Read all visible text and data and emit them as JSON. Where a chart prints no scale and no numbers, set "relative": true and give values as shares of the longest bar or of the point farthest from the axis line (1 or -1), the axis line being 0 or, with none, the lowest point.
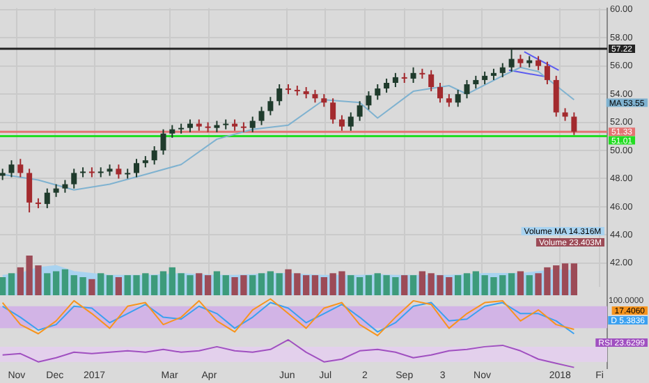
{
  "chart_data": [
    {
      "type": "candlestick",
      "tick_labels": "y",
      "grid": true,
      "x": [
        "2016-10-21",
        "2016-10-28",
        "2016-11-04",
        "2016-11-11",
        "2016-11-18",
        "2016-11-25",
        "2016-12-02",
        "2016-12-09",
        "2016-12-16",
        "2016-12-23",
        "2016-12-30",
        "2017-01-06",
        "2017-01-13",
        "2017-01-20",
        "2017-01-27",
        "2017-02-03",
        "2017-02-10",
        "2017-02-17",
        "2017-02-24",
        "2017-03-03",
        "2017-03-10",
        "2017-03-17",
        "2017-03-24",
        "2017-03-31",
        "2017-04-07",
        "2017-04-14",
        "2017-04-21",
        "2017-04-28",
        "2017-05-05",
        "2017-05-12",
        "2017-05-19",
        "2017-05-26",
        "2017-06-02",
        "2017-06-09",
        "2017-06-16",
        "2017-06-23",
        "2017-06-30",
        "2017-07-07",
        "2017-07-14",
        "2017-07-21",
        "2017-07-28",
        "2017-08-04",
        "2017-08-11",
        "2017-08-18",
        "2017-08-25",
        "2017-09-01",
        "2017-09-08",
        "2017-09-15",
        "2017-09-22",
        "2017-09-29",
        "2017-10-06",
        "2017-10-13",
        "2017-10-20",
        "2017-10-27",
        "2017-11-03",
        "2017-11-10",
        "2017-11-17",
        "2017-11-24",
        "2017-12-01",
        "2017-12-08",
        "2017-12-15",
        "2017-12-22",
        "2017-12-29",
        "2018-01-05",
        "2018-01-12"
      ],
      "ohlc": [
        [
          48.2,
          48.7,
          47.9,
          48.4
        ],
        [
          48.4,
          49.3,
          48.1,
          49.0
        ],
        [
          49.0,
          49.4,
          48.1,
          48.4
        ],
        [
          48.4,
          48.7,
          45.6,
          46.3
        ],
        [
          46.3,
          46.6,
          45.9,
          46.2
        ],
        [
          46.2,
          47.3,
          45.9,
          47.0
        ],
        [
          47.0,
          47.6,
          46.7,
          47.3
        ],
        [
          47.3,
          47.9,
          47.0,
          47.6
        ],
        [
          47.6,
          48.7,
          47.3,
          48.4
        ],
        [
          48.4,
          48.8,
          48.1,
          48.5
        ],
        [
          48.5,
          48.8,
          48.1,
          48.4
        ],
        [
          48.4,
          48.8,
          48.1,
          48.5
        ],
        [
          48.5,
          49.0,
          48.2,
          48.7
        ],
        [
          48.7,
          49.0,
          48.0,
          48.3
        ],
        [
          48.3,
          48.7,
          48.0,
          48.4
        ],
        [
          48.4,
          49.4,
          48.1,
          49.1
        ],
        [
          49.1,
          49.6,
          48.8,
          49.3
        ],
        [
          49.3,
          50.3,
          49.0,
          50.0
        ],
        [
          50.0,
          51.5,
          49.7,
          51.2
        ],
        [
          51.2,
          51.8,
          50.9,
          51.5
        ],
        [
          51.5,
          51.9,
          51.2,
          51.6
        ],
        [
          51.6,
          52.2,
          51.3,
          51.9
        ],
        [
          51.9,
          52.2,
          51.4,
          51.7
        ],
        [
          51.7,
          52.0,
          51.3,
          51.6
        ],
        [
          51.6,
          52.1,
          51.3,
          51.8
        ],
        [
          51.8,
          52.2,
          51.5,
          51.9
        ],
        [
          51.9,
          52.2,
          51.4,
          51.7
        ],
        [
          51.7,
          52.0,
          51.3,
          51.6
        ],
        [
          51.6,
          52.4,
          51.3,
          52.1
        ],
        [
          52.1,
          53.1,
          51.8,
          52.8
        ],
        [
          52.8,
          53.8,
          52.5,
          53.5
        ],
        [
          53.5,
          54.7,
          53.2,
          54.4
        ],
        [
          54.4,
          54.7,
          54.0,
          54.3
        ],
        [
          54.3,
          54.6,
          53.9,
          54.2
        ],
        [
          54.2,
          54.5,
          53.7,
          54.0
        ],
        [
          54.0,
          54.3,
          53.4,
          53.7
        ],
        [
          53.7,
          54.0,
          53.1,
          53.4
        ],
        [
          53.4,
          53.7,
          51.9,
          52.2
        ],
        [
          52.2,
          52.5,
          51.4,
          51.7
        ],
        [
          51.7,
          52.7,
          51.4,
          52.4
        ],
        [
          52.4,
          53.5,
          52.1,
          53.2
        ],
        [
          53.2,
          54.2,
          52.9,
          53.9
        ],
        [
          53.9,
          54.7,
          53.6,
          54.4
        ],
        [
          54.4,
          55.1,
          54.1,
          54.8
        ],
        [
          54.8,
          55.5,
          54.5,
          55.2
        ],
        [
          55.2,
          55.5,
          54.8,
          55.1
        ],
        [
          55.1,
          55.9,
          54.8,
          55.5
        ],
        [
          55.5,
          55.8,
          55.1,
          55.4
        ],
        [
          55.4,
          55.7,
          54.2,
          54.5
        ],
        [
          54.5,
          54.8,
          53.4,
          53.7
        ],
        [
          53.7,
          54.0,
          53.1,
          53.4
        ],
        [
          53.4,
          54.3,
          53.1,
          54.0
        ],
        [
          54.0,
          55.0,
          53.7,
          54.7
        ],
        [
          54.7,
          55.3,
          54.4,
          55.0
        ],
        [
          55.0,
          55.6,
          54.7,
          55.3
        ],
        [
          55.3,
          55.8,
          55.0,
          55.5
        ],
        [
          55.5,
          56.2,
          55.2,
          55.9
        ],
        [
          55.9,
          57.2,
          55.6,
          56.5
        ],
        [
          56.5,
          56.8,
          55.9,
          56.2
        ],
        [
          56.2,
          56.7,
          55.9,
          56.4
        ],
        [
          56.4,
          56.7,
          55.7,
          56.0
        ],
        [
          56.0,
          56.3,
          54.7,
          55.0
        ],
        [
          55.0,
          55.3,
          52.4,
          52.7
        ],
        [
          52.7,
          53.0,
          52.1,
          52.4
        ],
        [
          52.4,
          52.7,
          51.1,
          51.33
        ]
      ],
      "colors": [
        "#1f3b2c",
        "#1f3b2c",
        "#a32a2e",
        "#a32a2e",
        "#a32a2e",
        "#1f3b2c",
        "#1f3b2c",
        "#1f3b2c",
        "#1f3b2c",
        "#1f3b2c",
        "#a32a2e",
        "#1f3b2c",
        "#1f3b2c",
        "#a32a2e",
        "#1f3b2c",
        "#1f3b2c",
        "#1f3b2c",
        "#1f3b2c",
        "#1f3b2c",
        "#1f3b2c",
        "#1f3b2c",
        "#1f3b2c",
        "#a32a2e",
        "#a32a2e",
        "#1f3b2c",
        "#1f3b2c",
        "#a32a2e",
        "#a32a2e",
        "#1f3b2c",
        "#1f3b2c",
        "#1f3b2c",
        "#1f3b2c",
        "#a32a2e",
        "#a32a2e",
        "#a32a2e",
        "#a32a2e",
        "#a32a2e",
        "#a32a2e",
        "#a32a2e",
        "#1f3b2c",
        "#1f3b2c",
        "#1f3b2c",
        "#1f3b2c",
        "#1f3b2c",
        "#1f3b2c",
        "#a32a2e",
        "#1f3b2c",
        "#a32a2e",
        "#a32a2e",
        "#a32a2e",
        "#a32a2e",
        "#1f3b2c",
        "#1f3b2c",
        "#1f3b2c",
        "#1f3b2c",
        "#1f3b2c",
        "#1f3b2c",
        "#1f3b2c",
        "#a32a2e",
        "#1f3b2c",
        "#a32a2e",
        "#a32a2e",
        "#a32a2e",
        "#a32a2e",
        "#a32a2e"
      ],
      "series": [
        {
          "type": "line",
          "color": "#7fb2d0",
          "x": [
            "2016-10-21",
            "2016-11-18",
            "2016-12-16",
            "2017-01-13",
            "2017-02-10",
            "2017-03-10",
            "2017-04-07",
            "2017-05-05",
            "2017-06-02",
            "2017-06-30",
            "2017-07-28",
            "2017-08-11",
            "2017-09-08",
            "2017-10-06",
            "2017-10-20",
            "2017-11-17",
            "2017-12-01",
            "2017-12-15",
            "2018-01-12"
          ],
          "values": [
            48.3,
            47.9,
            47.2,
            47.6,
            48.3,
            49.0,
            50.8,
            51.5,
            51.8,
            53.6,
            53.4,
            52.3,
            54.2,
            54.6,
            54.0,
            55.3,
            55.9,
            55.6,
            53.6
          ]
        },
        {
          "type": "line",
          "color": "#5b5bf0",
          "x": [
            "2017-12-04",
            "2017-12-31"
          ],
          "values": [
            57.0,
            55.7
          ]
        },
        {
          "type": "line",
          "color": "#5b5bf0",
          "x": [
            "2017-11-22",
            "2017-12-23"
          ],
          "values": [
            55.7,
            55.2
          ]
        }
      ],
      "xlim": [
        "2016-10-19",
        "2018-02-07"
      ],
      "xticks": [
        {
          "value": "2016-11-01",
          "label": null
        },
        {
          "value": "2016-12-01",
          "label": null
        },
        {
          "value": "2017-01-01",
          "label": null
        },
        {
          "value": "2017-03-01",
          "label": null
        },
        {
          "value": "2017-04-01",
          "label": null
        },
        {
          "value": "2017-06-01",
          "label": null
        },
        {
          "value": "2017-07-01",
          "label": null
        },
        {
          "value": "2017-08-01",
          "label": null
        },
        {
          "value": "2017-09-01",
          "label": null
        },
        {
          "value": "2017-10-01",
          "label": null
        },
        {
          "value": "2017-11-01",
          "label": null
        },
        {
          "value": "2018-01-01",
          "label": null
        },
        {
          "value": "2018-02-01",
          "label": null
        }
      ],
      "ylim": [
        40.3,
        60.1
      ],
      "yticks": [
        {
          "value": 42,
          "label": "42.00"
        },
        {
          "value": 44,
          "label": "44.00"
        },
        {
          "value": 46,
          "label": "46.00"
        },
        {
          "value": 48,
          "label": "48.00"
        },
        {
          "value": 50,
          "label": "50.00"
        },
        {
          "value": 52,
          "label": "52.00"
        },
        {
          "value": 54,
          "label": "54.00"
        },
        {
          "value": 56,
          "label": "56.00"
        },
        {
          "value": 58,
          "label": "58.00"
        },
        {
          "value": 60,
          "label": "60.00"
        }
      ],
      "ref_lines": [
        {
          "axis": "y",
          "value": 57.22,
          "label": "57.22",
          "color": "#222222"
        },
        {
          "axis": "y",
          "value": 51.33,
          "label": "51.33",
          "color": "#e57373"
        },
        {
          "axis": "y",
          "value": 51.01,
          "label": "51.01",
          "color": "#22dd22"
        }
      ],
      "annotations": [
        "MA 53.55"
      ]
    },
    {
      "type": "bar",
      "relative": true,
      "tick_labels": false,
      "x": [
        "2016-10-21",
        "2016-10-28",
        "2016-11-04",
        "2016-11-11",
        "2016-11-18",
        "2016-11-25",
        "2016-12-02",
        "2016-12-09",
        "2016-12-16",
        "2016-12-23",
        "2016-12-30",
        "2017-01-06",
        "2017-01-13",
        "2017-01-20",
        "2017-01-27",
        "2017-02-03",
        "2017-02-10",
        "2017-02-17",
        "2017-02-24",
        "2017-03-03",
        "2017-03-10",
        "2017-03-17",
        "2017-03-24",
        "2017-03-31",
        "2017-04-07",
        "2017-04-14",
        "2017-04-21",
        "2017-04-28",
        "2017-05-05",
        "2017-05-12",
        "2017-05-19",
        "2017-05-26",
        "2017-06-02",
        "2017-06-09",
        "2017-06-16",
        "2017-06-23",
        "2017-06-30",
        "2017-07-07",
        "2017-07-14",
        "2017-07-21",
        "2017-07-28",
        "2017-08-04",
        "2017-08-11",
        "2017-08-18",
        "2017-08-25",
        "2017-09-01",
        "2017-09-08",
        "2017-09-15",
        "2017-09-22",
        "2017-09-29",
        "2017-10-06",
        "2017-10-13",
        "2017-10-20",
        "2017-10-27",
        "2017-11-03",
        "2017-11-10",
        "2017-11-17",
        "2017-11-24",
        "2017-12-01",
        "2017-12-08",
        "2017-12-15",
        "2017-12-22",
        "2017-12-29",
        "2018-01-05",
        "2018-01-12"
      ],
      "series": [
        {
          "type": "area",
          "color": "#a9d3f0",
          "x": [
            "2016-10-21",
            "2016-11-04",
            "2016-11-18",
            "2016-12-02",
            "2016-12-16",
            "2016-12-30",
            "2017-01-13",
            "2017-01-27",
            "2017-02-10",
            "2017-02-24",
            "2017-03-10",
            "2017-03-24",
            "2017-04-07",
            "2017-04-21",
            "2017-05-05",
            "2017-05-19",
            "2017-06-02",
            "2017-06-16",
            "2017-06-30",
            "2017-07-14",
            "2017-07-28",
            "2017-08-11",
            "2017-08-25",
            "2017-09-08",
            "2017-09-22",
            "2017-10-06",
            "2017-10-20",
            "2017-11-03",
            "2017-11-17",
            "2017-12-01",
            "2017-12-15",
            "2017-12-29",
            "2018-01-12"
          ],
          "values": [
            0.5,
            0.55,
            0.7,
            0.75,
            0.6,
            0.55,
            0.5,
            0.5,
            0.5,
            0.52,
            0.55,
            0.52,
            0.5,
            0.5,
            0.52,
            0.55,
            0.55,
            0.52,
            0.5,
            0.5,
            0.5,
            0.52,
            0.5,
            0.5,
            0.5,
            0.5,
            0.52,
            0.55,
            0.55,
            0.55,
            0.6,
            0.65,
            0.62
          ]
        },
        {
          "type": "bar",
          "values": [
            0.45,
            0.55,
            0.7,
            1.0,
            0.75,
            0.55,
            0.6,
            0.65,
            0.5,
            0.45,
            0.4,
            0.55,
            0.5,
            0.45,
            0.5,
            0.5,
            0.55,
            0.5,
            0.6,
            0.7,
            0.55,
            0.5,
            0.55,
            0.5,
            0.6,
            0.5,
            0.45,
            0.5,
            0.5,
            0.55,
            0.6,
            0.55,
            0.65,
            0.55,
            0.5,
            0.5,
            0.45,
            0.55,
            0.6,
            0.5,
            0.45,
            0.5,
            0.55,
            0.5,
            0.45,
            0.5,
            0.5,
            0.6,
            0.55,
            0.5,
            0.45,
            0.5,
            0.55,
            0.6,
            0.5,
            0.45,
            0.5,
            0.55,
            0.6,
            0.5,
            0.55,
            0.7,
            0.75,
            0.8,
            0.8
          ],
          "colors": [
            "#3d9b7b",
            "#3d9b7b",
            "#9c4b57",
            "#9c4b57",
            "#9c4b57",
            "#3d9b7b",
            "#3d9b7b",
            "#3d9b7b",
            "#3d9b7b",
            "#3d9b7b",
            "#9c4b57",
            "#3d9b7b",
            "#3d9b7b",
            "#9c4b57",
            "#3d9b7b",
            "#3d9b7b",
            "#3d9b7b",
            "#3d9b7b",
            "#3d9b7b",
            "#3d9b7b",
            "#3d9b7b",
            "#3d9b7b",
            "#9c4b57",
            "#9c4b57",
            "#3d9b7b",
            "#3d9b7b",
            "#9c4b57",
            "#9c4b57",
            "#3d9b7b",
            "#3d9b7b",
            "#3d9b7b",
            "#3d9b7b",
            "#9c4b57",
            "#9c4b57",
            "#9c4b57",
            "#9c4b57",
            "#9c4b57",
            "#9c4b57",
            "#9c4b57",
            "#3d9b7b",
            "#3d9b7b",
            "#3d9b7b",
            "#3d9b7b",
            "#3d9b7b",
            "#3d9b7b",
            "#9c4b57",
            "#3d9b7b",
            "#9c4b57",
            "#9c4b57",
            "#9c4b57",
            "#9c4b57",
            "#3d9b7b",
            "#3d9b7b",
            "#3d9b7b",
            "#3d9b7b",
            "#3d9b7b",
            "#3d9b7b",
            "#3d9b7b",
            "#9c4b57",
            "#3d9b7b",
            "#9c4b57",
            "#9c4b57",
            "#9c4b57",
            "#9c4b57",
            "#9c4b57"
          ]
        }
      ],
      "xlim": [
        "2016-10-19",
        "2018-02-07"
      ],
      "annotations": [
        "Volume MA 14.316M",
        "Volume 23.403M"
      ]
    },
    {
      "type": "line",
      "relative": true,
      "tick_labels": false,
      "x": [
        "2016-10-21",
        "2016-11-04",
        "2016-11-18",
        "2016-12-02",
        "2016-12-16",
        "2016-12-30",
        "2017-01-13",
        "2017-01-27",
        "2017-02-10",
        "2017-02-24",
        "2017-03-10",
        "2017-03-24",
        "2017-04-07",
        "2017-04-21",
        "2017-05-05",
        "2017-05-19",
        "2017-06-02",
        "2017-06-16",
        "2017-06-30",
        "2017-07-14",
        "2017-07-28",
        "2017-08-11",
        "2017-08-25",
        "2017-09-08",
        "2017-09-22",
        "2017-10-06",
        "2017-10-20",
        "2017-11-03",
        "2017-11-17",
        "2017-12-01",
        "2017-12-15",
        "2017-12-29",
        "2018-01-12"
      ],
      "series": [
        {
          "color": "#f7941d",
          "values": [
            0.9,
            0.3,
            0.05,
            0.4,
            0.95,
            0.6,
            0.2,
            0.8,
            0.9,
            0.3,
            0.5,
            0.95,
            0.4,
            0.1,
            0.7,
            1.0,
            0.6,
            0.2,
            0.75,
            0.9,
            0.3,
            0.0,
            0.5,
            0.95,
            0.85,
            0.2,
            0.6,
            0.9,
            0.95,
            0.4,
            0.7,
            0.3,
            0.17
          ]
        },
        {
          "color": "#3aa0f0",
          "values": [
            0.8,
            0.5,
            0.15,
            0.3,
            0.8,
            0.75,
            0.35,
            0.6,
            0.85,
            0.5,
            0.45,
            0.8,
            0.6,
            0.2,
            0.5,
            0.9,
            0.75,
            0.35,
            0.6,
            0.85,
            0.5,
            0.1,
            0.35,
            0.8,
            0.9,
            0.4,
            0.45,
            0.8,
            0.9,
            0.6,
            0.6,
            0.4,
            0.05
          ]
        }
      ],
      "bands": [
        {
          "axis": "y",
          "from": 0.2,
          "to": 0.8,
          "color": "#d2b4e6"
        }
      ],
      "xlim": [
        "2016-10-19",
        "2018-02-07"
      ],
      "annotations": [
        "17.4060",
        "D 5.3836",
        "100.0000"
      ]
    },
    {
      "type": "line",
      "relative": true,
      "tick_labels": "x",
      "x": [
        "2016-10-21",
        "2016-11-04",
        "2016-11-18",
        "2016-12-02",
        "2016-12-16",
        "2016-12-30",
        "2017-01-13",
        "2017-01-27",
        "2017-02-10",
        "2017-02-24",
        "2017-03-10",
        "2017-03-24",
        "2017-04-07",
        "2017-04-21",
        "2017-05-05",
        "2017-05-19",
        "2017-06-02",
        "2017-06-16",
        "2017-06-30",
        "2017-07-14",
        "2017-07-28",
        "2017-08-11",
        "2017-08-25",
        "2017-09-08",
        "2017-09-22",
        "2017-10-06",
        "2017-10-20",
        "2017-11-03",
        "2017-11-17",
        "2017-12-01",
        "2017-12-15",
        "2017-12-29",
        "2018-01-12"
      ],
      "series": [
        {
          "color": "#a050c0",
          "values": [
            0.45,
            0.5,
            0.2,
            0.35,
            0.55,
            0.5,
            0.55,
            0.6,
            0.55,
            0.65,
            0.55,
            0.6,
            0.75,
            0.6,
            0.55,
            0.65,
            1.0,
            0.55,
            0.2,
            0.3,
            0.6,
            0.65,
            0.55,
            0.35,
            0.45,
            0.6,
            0.65,
            0.75,
            0.8,
            0.6,
            0.3,
            0.15,
            0.0
          ]
        }
      ],
      "bands": [
        {
          "axis": "y",
          "from": 0.2,
          "to": 0.75,
          "color": "#e3d0ec"
        }
      ],
      "xlim": [
        "2016-10-19",
        "2018-02-07"
      ],
      "xticks": [
        {
          "value": "2016-11-01",
          "label": "Nov"
        },
        {
          "value": "2016-12-01",
          "label": "Dec"
        },
        {
          "value": "2017-01-01",
          "label": "2017"
        },
        {
          "value": "2017-03-01",
          "label": "Mar"
        },
        {
          "value": "2017-04-01",
          "label": "Apr"
        },
        {
          "value": "2017-06-01",
          "label": "Jun"
        },
        {
          "value": "2017-07-01",
          "label": "Jul"
        },
        {
          "value": "2017-08-01",
          "label": "2"
        },
        {
          "value": "2017-09-01",
          "label": "Sep"
        },
        {
          "value": "2017-10-01",
          "label": "3"
        },
        {
          "value": "2017-11-01",
          "label": "Nov"
        },
        {
          "value": "2018-01-01",
          "label": "2018"
        },
        {
          "value": "2018-02-01",
          "label": "Fi"
        }
      ],
      "annotations": [
        "RSI 23.6299"
      ]
    }
  ]
}
